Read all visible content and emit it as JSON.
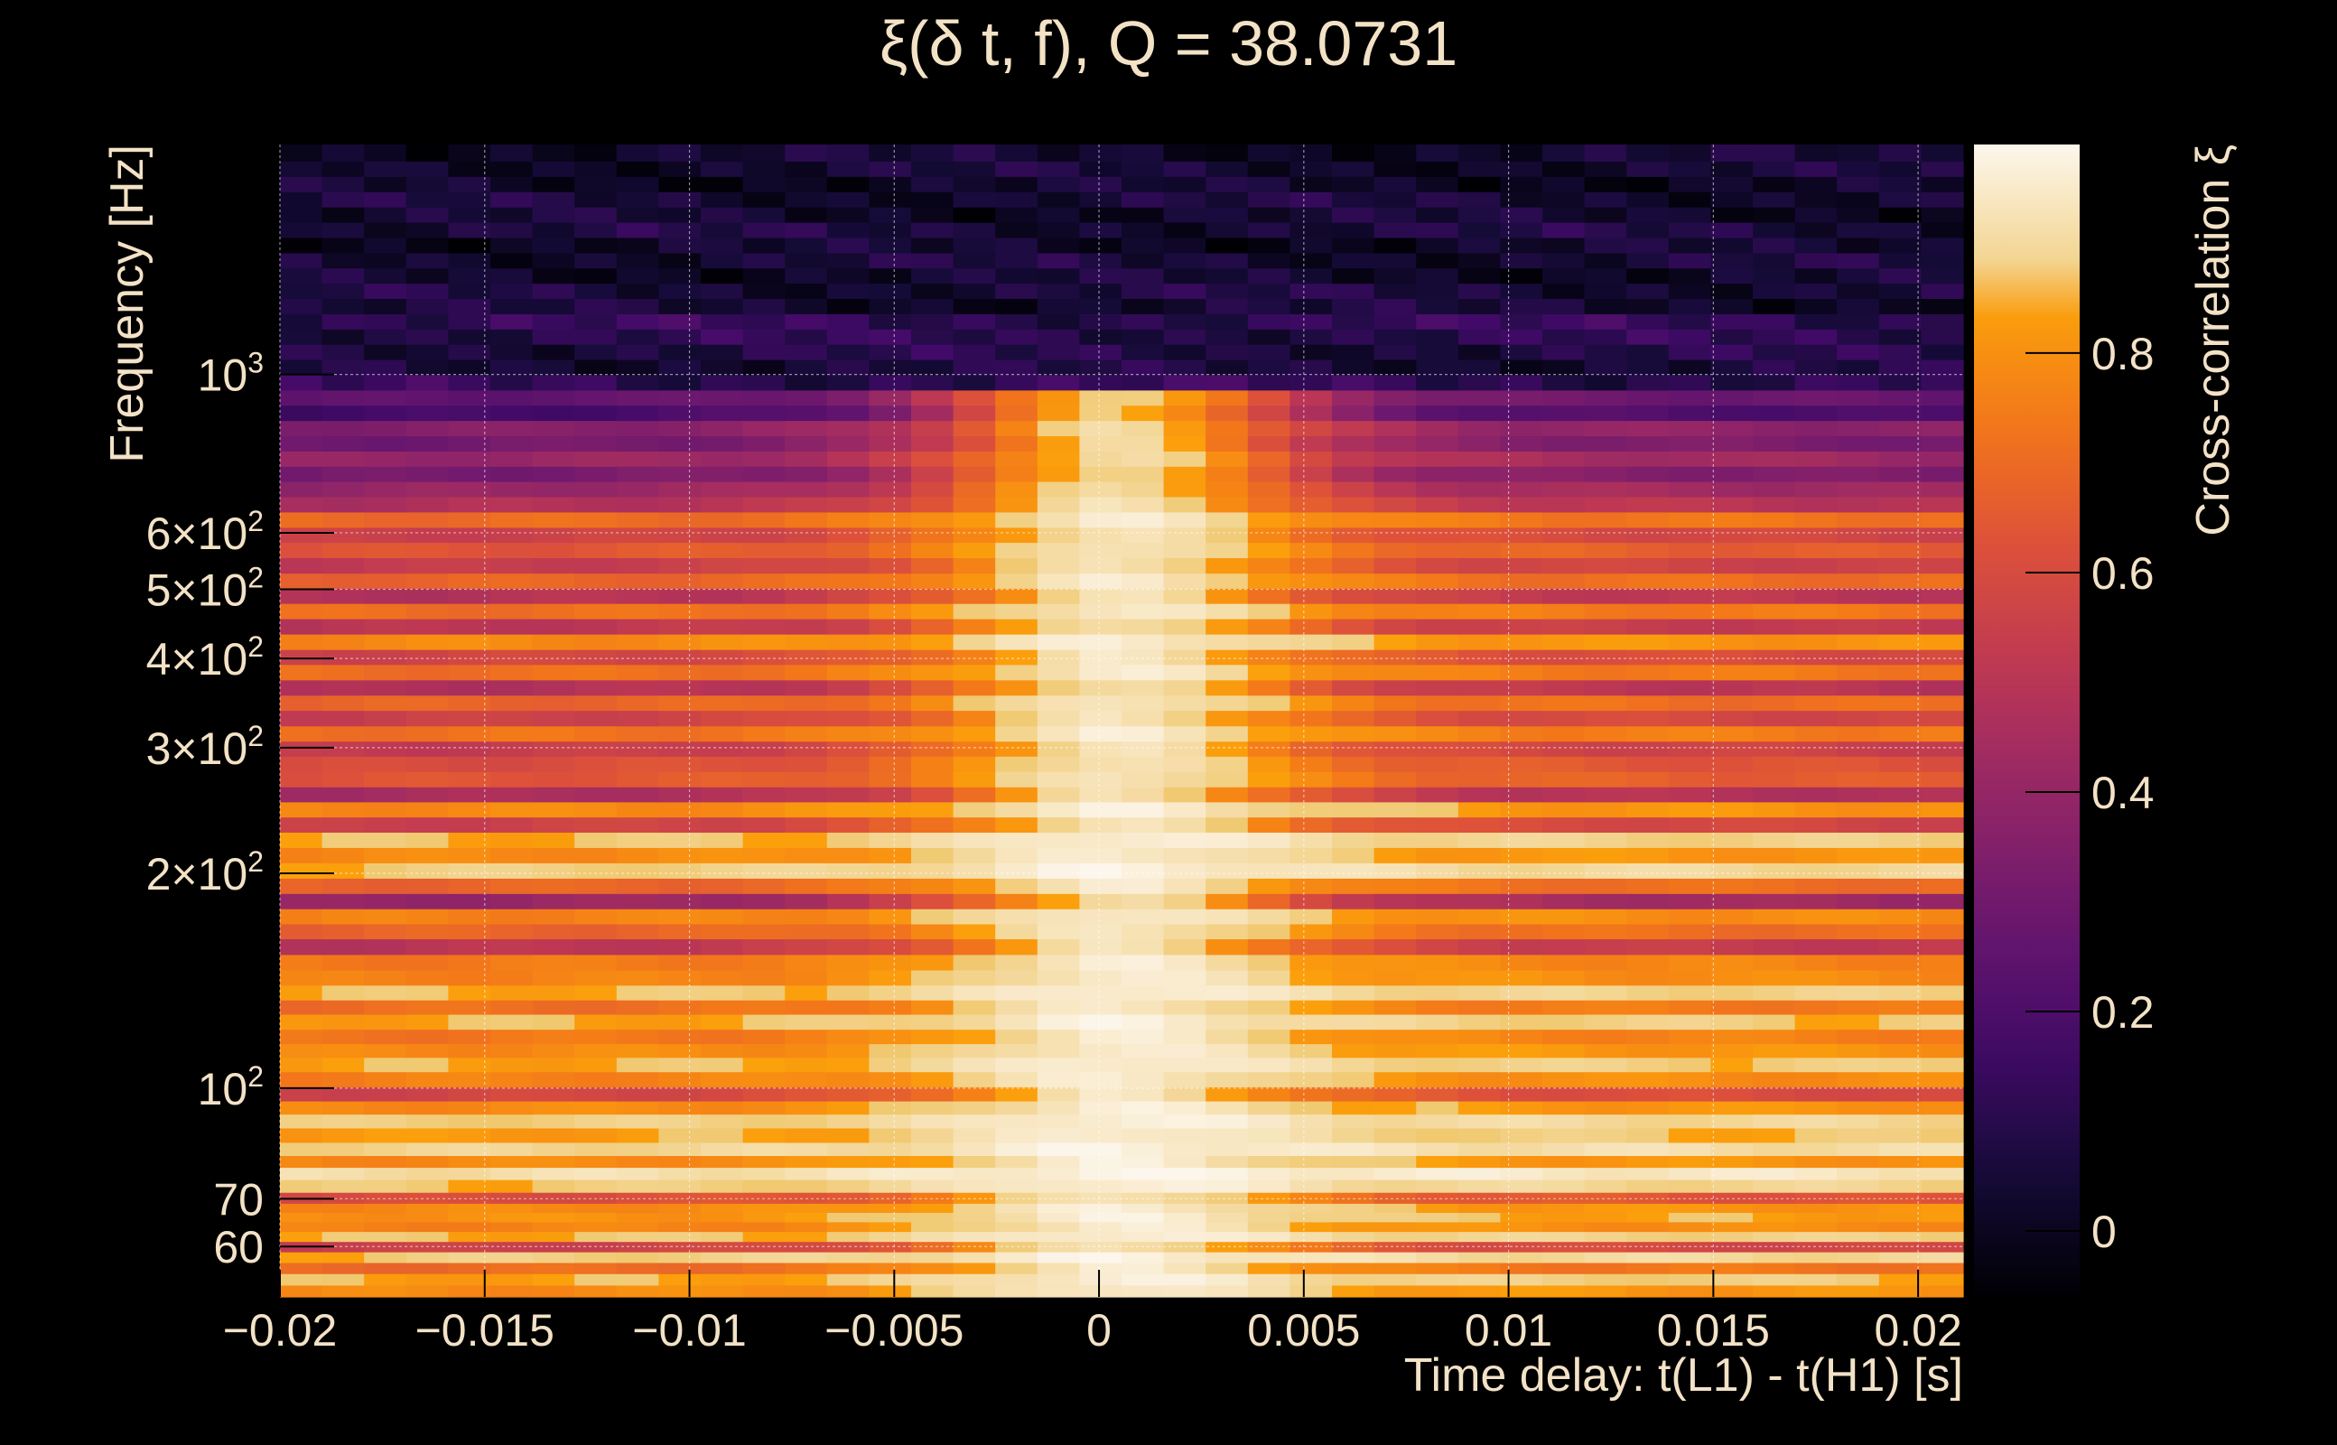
{
  "chart_data": {
    "type": "heatmap",
    "title": "ξ(δ t, f), Q = 38.0731",
    "xlabel": "Time delay: t(L1) - t(H1) [s]",
    "ylabel": "Frequency [Hz]",
    "colorbar_label": "Cross-correlation ξ",
    "colormap": "inferno",
    "xlim": [
      -0.02,
      0.0211
    ],
    "ylim": [
      51,
      2100
    ],
    "y_scale": "log",
    "zlim": [
      -0.06,
      0.99
    ],
    "grid": true,
    "x_ticks": [
      {
        "value": -0.02,
        "label": "−0.02"
      },
      {
        "value": -0.015,
        "label": "−0.015"
      },
      {
        "value": -0.01,
        "label": "−0.01"
      },
      {
        "value": -0.005,
        "label": "−0.005"
      },
      {
        "value": 0,
        "label": "0"
      },
      {
        "value": 0.005,
        "label": "0.005"
      },
      {
        "value": 0.01,
        "label": "0.01"
      },
      {
        "value": 0.015,
        "label": "0.015"
      },
      {
        "value": 0.02,
        "label": "0.02"
      }
    ],
    "y_ticks": [
      {
        "value": 60,
        "mantissa": "60",
        "exponent": ""
      },
      {
        "value": 70,
        "mantissa": "70",
        "exponent": ""
      },
      {
        "value": 100,
        "mantissa": "10",
        "exponent": "2"
      },
      {
        "value": 200,
        "mantissa": "2×10",
        "exponent": "2"
      },
      {
        "value": 300,
        "mantissa": "3×10",
        "exponent": "2"
      },
      {
        "value": 400,
        "mantissa": "4×10",
        "exponent": "2"
      },
      {
        "value": 500,
        "mantissa": "5×10",
        "exponent": "2"
      },
      {
        "value": 600,
        "mantissa": "6×10",
        "exponent": "2"
      },
      {
        "value": 1000,
        "mantissa": "10",
        "exponent": "3"
      }
    ],
    "colorbar_ticks": [
      {
        "value": 0,
        "label": "0"
      },
      {
        "value": 0.2,
        "label": "0.2"
      },
      {
        "value": 0.4,
        "label": "0.4"
      },
      {
        "value": 0.6,
        "label": "0.6"
      },
      {
        "value": 0.8,
        "label": "0.8"
      }
    ],
    "frequency_bands": [
      {
        "f": 52,
        "v": 0.8
      },
      {
        "f": 54,
        "v": 0.85
      },
      {
        "f": 56,
        "v": 0.72
      },
      {
        "f": 58,
        "v": 0.88
      },
      {
        "f": 60,
        "v": 0.6
      },
      {
        "f": 62,
        "v": 0.86
      },
      {
        "f": 64,
        "v": 0.78
      },
      {
        "f": 66,
        "v": 0.82
      },
      {
        "f": 68,
        "v": 0.8
      },
      {
        "f": 70,
        "v": 0.65
      },
      {
        "f": 73,
        "v": 0.87
      },
      {
        "f": 76,
        "v": 0.93
      },
      {
        "f": 79,
        "v": 0.8
      },
      {
        "f": 82,
        "v": 0.9
      },
      {
        "f": 86,
        "v": 0.84
      },
      {
        "f": 90,
        "v": 0.88
      },
      {
        "f": 94,
        "v": 0.8
      },
      {
        "f": 98,
        "v": 0.62
      },
      {
        "f": 103,
        "v": 0.78
      },
      {
        "f": 108,
        "v": 0.85
      },
      {
        "f": 113,
        "v": 0.8
      },
      {
        "f": 118,
        "v": 0.75
      },
      {
        "f": 124,
        "v": 0.85
      },
      {
        "f": 130,
        "v": 0.73
      },
      {
        "f": 136,
        "v": 0.86
      },
      {
        "f": 143,
        "v": 0.78
      },
      {
        "f": 150,
        "v": 0.76
      },
      {
        "f": 158,
        "v": 0.55
      },
      {
        "f": 166,
        "v": 0.7
      },
      {
        "f": 174,
        "v": 0.78
      },
      {
        "f": 183,
        "v": 0.45
      },
      {
        "f": 192,
        "v": 0.7
      },
      {
        "f": 202,
        "v": 0.88
      },
      {
        "f": 212,
        "v": 0.8
      },
      {
        "f": 223,
        "v": 0.86
      },
      {
        "f": 234,
        "v": 0.6
      },
      {
        "f": 246,
        "v": 0.8
      },
      {
        "f": 258,
        "v": 0.5
      },
      {
        "f": 271,
        "v": 0.68
      },
      {
        "f": 285,
        "v": 0.65
      },
      {
        "f": 299,
        "v": 0.58
      },
      {
        "f": 314,
        "v": 0.74
      },
      {
        "f": 330,
        "v": 0.6
      },
      {
        "f": 347,
        "v": 0.7
      },
      {
        "f": 364,
        "v": 0.52
      },
      {
        "f": 383,
        "v": 0.73
      },
      {
        "f": 402,
        "v": 0.62
      },
      {
        "f": 422,
        "v": 0.8
      },
      {
        "f": 444,
        "v": 0.55
      },
      {
        "f": 466,
        "v": 0.73
      },
      {
        "f": 490,
        "v": 0.53
      },
      {
        "f": 514,
        "v": 0.7
      },
      {
        "f": 540,
        "v": 0.58
      },
      {
        "f": 568,
        "v": 0.68
      },
      {
        "f": 596,
        "v": 0.6
      },
      {
        "f": 626,
        "v": 0.72
      },
      {
        "f": 658,
        "v": 0.52
      },
      {
        "f": 691,
        "v": 0.45
      },
      {
        "f": 726,
        "v": 0.36
      },
      {
        "f": 762,
        "v": 0.45
      },
      {
        "f": 801,
        "v": 0.35
      },
      {
        "f": 841,
        "v": 0.4
      },
      {
        "f": 884,
        "v": 0.22
      },
      {
        "f": 928,
        "v": 0.3
      },
      {
        "f": 975,
        "v": 0.12
      },
      {
        "f": 1024,
        "v": 0.06
      },
      {
        "f": 1076,
        "v": 0.08
      },
      {
        "f": 1130,
        "v": 0.1
      },
      {
        "f": 1187,
        "v": 0.12
      },
      {
        "f": 1247,
        "v": 0.04
      },
      {
        "f": 1310,
        "v": 0.06
      },
      {
        "f": 1376,
        "v": 0.03
      },
      {
        "f": 1445,
        "v": 0.05
      },
      {
        "f": 1518,
        "v": 0.02
      },
      {
        "f": 1595,
        "v": 0.06
      },
      {
        "f": 1675,
        "v": 0.03
      },
      {
        "f": 1760,
        "v": 0.05
      },
      {
        "f": 1849,
        "v": 0.02
      },
      {
        "f": 1942,
        "v": 0.04
      },
      {
        "f": 2040,
        "v": 0.03
      }
    ],
    "peak_delay": 0.0005,
    "peak_value": 0.99
  }
}
